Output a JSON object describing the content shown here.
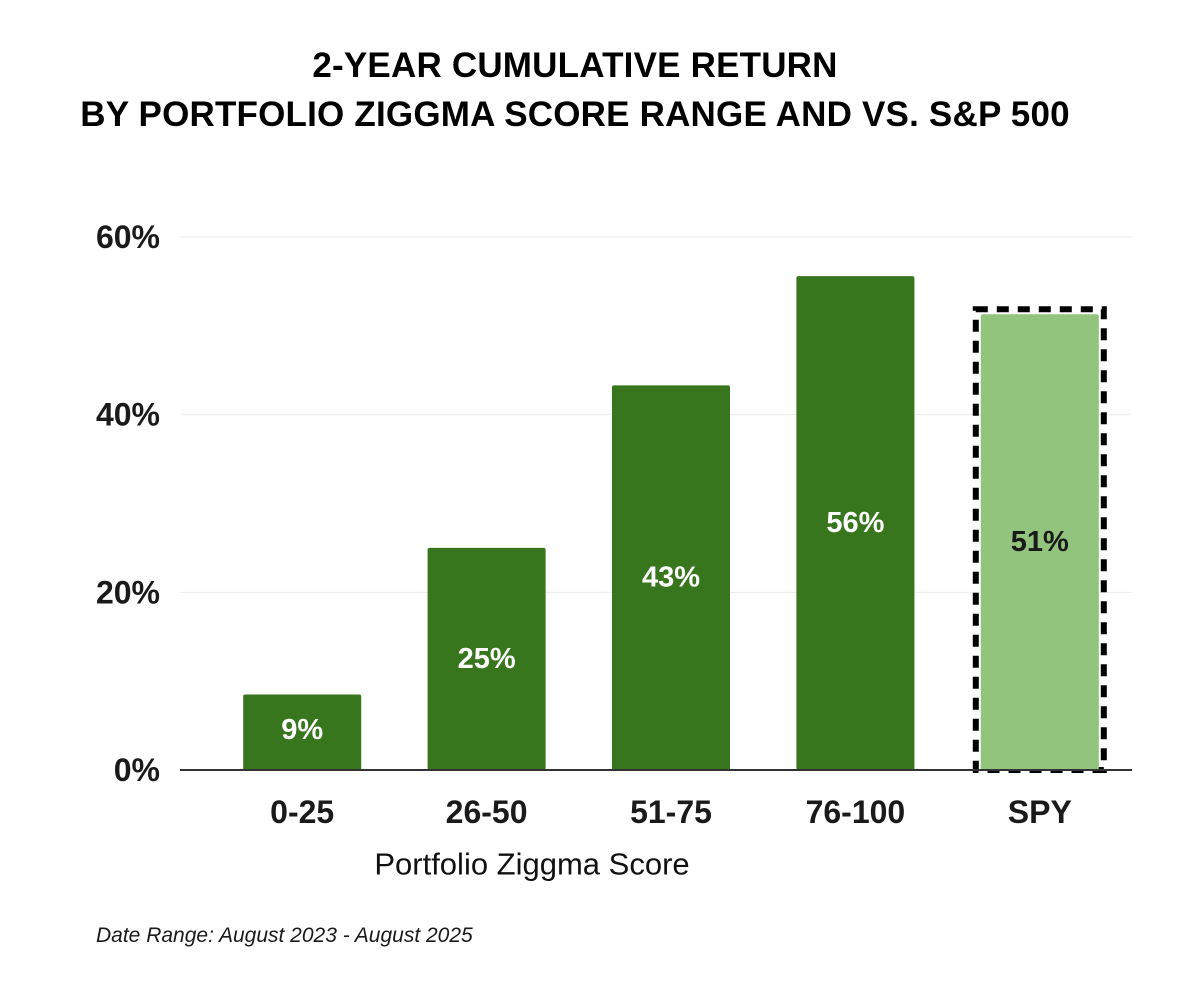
{
  "chart_data": {
    "type": "bar",
    "title_line1": "2-YEAR CUMULATIVE RETURN",
    "title_line2": "BY PORTFOLIO ZIGGMA SCORE RANGE AND VS. S&P 500",
    "categories": [
      "0-25",
      "26-50",
      "51-75",
      "76-100",
      "SPY"
    ],
    "values": [
      8.5,
      25,
      43.3,
      55.6,
      51.3
    ],
    "data_labels": [
      "9%",
      "25%",
      "43%",
      "56%",
      "51%"
    ],
    "xlabel": "Portfolio Ziggma Score",
    "ylabel": "",
    "ylim": [
      0,
      60
    ],
    "yticks": [
      0,
      20,
      40,
      60
    ],
    "ytick_labels": [
      "0%",
      "20%",
      "40%",
      "60%"
    ],
    "grid": true,
    "colors": {
      "score_bar": "#38761d",
      "benchmark_bar": "#93c47d",
      "score_label": "#ffffff",
      "benchmark_label": "#1a1a1a",
      "benchmark_border": "#000000"
    },
    "highlight_category": "SPY"
  },
  "footnote": "Date Range: August 2023 - August 2025"
}
